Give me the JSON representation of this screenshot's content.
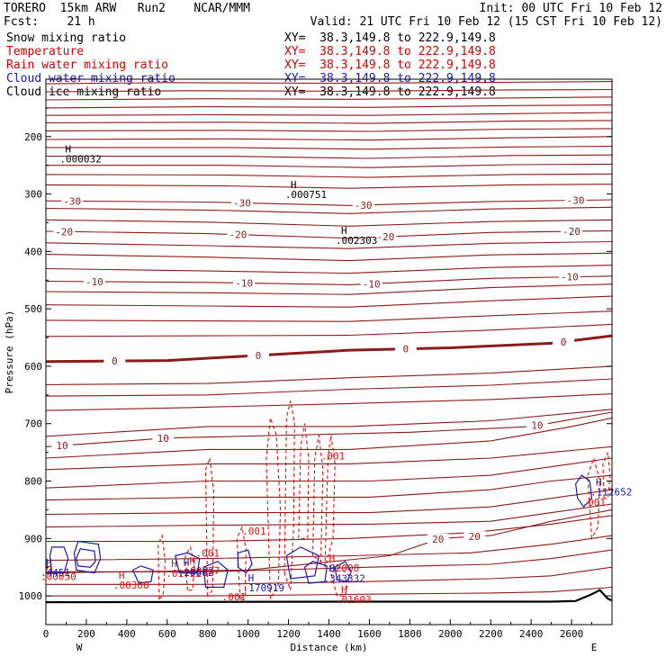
{
  "header": {
    "model": "TORERO  15km ARW   Run2    NCAR/MMM",
    "init": "Init: 00 UTC Fri 10 Feb 12",
    "fcst": "Fcst:    21 h",
    "valid": "Valid: 21 UTC Fri 10 Feb 12 (15 CST Fri 10 Feb 12)"
  },
  "fields": [
    {
      "name": "Snow mixing ratio",
      "xy": "XY=  38.3,149.8 to 222.9,149.8",
      "color": "#000000"
    },
    {
      "name": "Temperature",
      "xy": "XY=  38.3,149.8 to 222.9,149.8",
      "color": "#d40000"
    },
    {
      "name": "Rain water mixing ratio",
      "xy": "XY=  38.3,149.8 to 222.9,149.8",
      "color": "#d40000"
    },
    {
      "name": "Cloud water mixing ratio",
      "xy": "XY=  38.3,149.8 to 222.9,149.8",
      "color": "#1a1aa8"
    },
    {
      "name": "Cloud ice mixing ratio",
      "xy": "XY=  38.3,149.8 to 222.9,149.8",
      "color": "#000000"
    }
  ],
  "colors": {
    "temperature": "#8b1a1a",
    "rain": "#e01010",
    "cloud_water": "#1a1aa8",
    "snow": "#000000",
    "terrain": "#000000"
  },
  "chart_data": {
    "type": "cross-section",
    "xlabel": "Distance (km)",
    "ylabel": "Pressure (hPa)",
    "xlim": [
      0,
      2800
    ],
    "ylim": [
      1050,
      100
    ],
    "x_ticks": [
      0,
      200,
      400,
      600,
      800,
      1000,
      1200,
      1400,
      1600,
      1800,
      2000,
      2200,
      2400,
      2600
    ],
    "y_ticks": [
      200,
      300,
      400,
      500,
      600,
      700,
      800,
      900,
      1000
    ],
    "x_end_labels": [
      "W",
      "E"
    ],
    "temperature_isotherms": [
      {
        "value": -30,
        "label_positions_km": [
          130,
          970,
          1570,
          2620
        ]
      },
      {
        "value": -20,
        "label_positions_km": [
          90,
          950,
          1680,
          2600
        ]
      },
      {
        "value": -10,
        "label_positions_km": [
          240,
          980,
          1610,
          2590
        ]
      },
      {
        "value": 0,
        "label_positions_km": [
          340,
          1050,
          1780,
          2560
        ]
      },
      {
        "value": 10,
        "label_positions_km": [
          80,
          580,
          2430
        ]
      },
      {
        "value": 20,
        "label_positions_km": [
          1940,
          2120
        ]
      }
    ],
    "extrema": [
      {
        "field": "snow",
        "type": "H",
        "x_km": 95,
        "p_hPa": 228,
        "value": ".000032"
      },
      {
        "field": "snow",
        "type": "H",
        "x_km": 1210,
        "p_hPa": 290,
        "value": ".000751"
      },
      {
        "field": "snow",
        "type": "H",
        "x_km": 1460,
        "p_hPa": 370,
        "value": ".002303"
      },
      {
        "field": "rain",
        "type": "H",
        "x_km": 0,
        "p_hPa": 955,
        "value": ".00050"
      },
      {
        "field": "rain",
        "type": "H",
        "x_km": 360,
        "p_hPa": 970,
        "value": ".00368"
      },
      {
        "field": "rain",
        "type": "H",
        "x_km": 620,
        "p_hPa": 950,
        "value": ".01722"
      },
      {
        "field": "rain",
        "type": "H",
        "x_km": 710,
        "p_hPa": 945,
        "value": ".00827"
      },
      {
        "field": "rain",
        "type": "H",
        "x_km": 1400,
        "p_hPa": 940,
        "value": ".02008"
      },
      {
        "field": "rain",
        "type": "H",
        "x_km": 1460,
        "p_hPa": 995,
        "value": ".01603"
      },
      {
        "field": "cloud_water",
        "type": "H",
        "x_km": 0,
        "p_hPa": 948,
        "value": ".4451"
      },
      {
        "field": "cloud_water",
        "type": "H",
        "x_km": 680,
        "p_hPa": 948,
        "value": ".20682"
      },
      {
        "field": "cloud_water",
        "type": "H",
        "x_km": 1000,
        "p_hPa": 975,
        "value": ".170919"
      },
      {
        "field": "cloud_water",
        "type": "H",
        "x_km": 1400,
        "p_hPa": 958,
        "value": ".343332"
      },
      {
        "field": "cloud_water",
        "type": "H",
        "x_km": 2720,
        "p_hPa": 808,
        "value": ".112652"
      }
    ],
    "contour_labels": [
      {
        "field": "rain",
        "x_km": 1420,
        "p_hPa": 762,
        "value": ".001"
      },
      {
        "field": "rain",
        "x_km": 1030,
        "p_hPa": 893,
        "value": ".001"
      },
      {
        "field": "rain",
        "x_km": 800,
        "p_hPa": 932,
        "value": ".001"
      },
      {
        "field": "rain",
        "x_km": 930,
        "p_hPa": 1008,
        "value": ".001"
      },
      {
        "field": "rain",
        "x_km": 2710,
        "p_hPa": 843,
        "value": ".001"
      }
    ]
  }
}
